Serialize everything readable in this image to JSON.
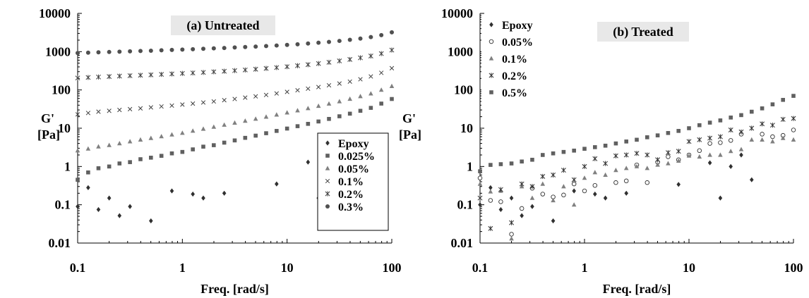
{
  "chart_data": [
    {
      "type": "scatter",
      "title": "(a) Untreated",
      "xlabel": "Freq. [rad/s]",
      "ylabel": "G' [Pa]",
      "xscale": "log",
      "yscale": "log",
      "xlim": [
        0.1,
        100
      ],
      "ylim": [
        0.01,
        10000
      ],
      "xticks": [
        "0.1",
        "1",
        "10",
        "100"
      ],
      "yticks": [
        "0.01",
        "0.1",
        "1",
        "10",
        "100",
        "1000",
        "10000"
      ],
      "grid": false,
      "legend_position": "bottom-right",
      "series": [
        {
          "name": "Epoxy",
          "marker": "diamond",
          "color": "#303030",
          "x": [
            0.1,
            0.126,
            0.158,
            0.2,
            0.251,
            0.316,
            0.501,
            0.794,
            1.259,
            1.585,
            2.512,
            7.943,
            15.85,
            19.95
          ],
          "y": [
            0.09,
            0.28,
            0.075,
            0.15,
            0.052,
            0.09,
            0.038,
            0.23,
            0.19,
            0.15,
            0.2,
            0.35,
            1.3,
            0.15
          ]
        },
        {
          "name": "0.025%",
          "marker": "square",
          "color": "#606060",
          "x": [
            0.1,
            0.126,
            0.158,
            0.2,
            0.251,
            0.316,
            0.398,
            0.501,
            0.631,
            0.794,
            1.0,
            1.259,
            1.585,
            1.995,
            2.512,
            3.162,
            3.981,
            5.012,
            6.31,
            7.943,
            10.0,
            12.59,
            15.85,
            19.95,
            25.12,
            31.62,
            39.81,
            50.12,
            63.1,
            79.43,
            100
          ],
          "y": [
            0.45,
            0.7,
            0.9,
            1.0,
            1.2,
            1.3,
            1.55,
            1.7,
            1.9,
            2.2,
            2.4,
            2.8,
            3.3,
            3.6,
            4.2,
            4.8,
            5.6,
            6.4,
            7.4,
            8.5,
            9.8,
            11.3,
            13.0,
            15.0,
            17.5,
            20.5,
            24.0,
            28.5,
            34.0,
            44.0,
            58.0
          ]
        },
        {
          "name": "0.05%",
          "marker": "triangle",
          "color": "#808080",
          "x": [
            0.1,
            0.126,
            0.158,
            0.2,
            0.251,
            0.316,
            0.398,
            0.501,
            0.631,
            0.794,
            1.0,
            1.259,
            1.585,
            1.995,
            2.512,
            3.162,
            3.981,
            5.012,
            6.31,
            7.943,
            10.0,
            12.59,
            15.85,
            19.95,
            25.12,
            31.62,
            39.81,
            50.12,
            63.1,
            79.43,
            100
          ],
          "y": [
            2.6,
            2.9,
            3.3,
            3.6,
            4.0,
            4.5,
            5.0,
            5.5,
            6.1,
            6.8,
            7.5,
            8.5,
            9.6,
            10.8,
            12.2,
            13.8,
            15.5,
            17.5,
            19.8,
            22.5,
            25.5,
            29.0,
            33.0,
            38.0,
            43.5,
            50.0,
            58.0,
            68.0,
            80.0,
            100.0,
            125.0
          ]
        },
        {
          "name": "0.1%",
          "marker": "x",
          "color": "#404040",
          "x": [
            0.1,
            0.126,
            0.158,
            0.2,
            0.251,
            0.316,
            0.398,
            0.501,
            0.631,
            0.794,
            1.0,
            1.259,
            1.585,
            1.995,
            2.512,
            3.162,
            3.981,
            5.012,
            6.31,
            7.943,
            10.0,
            12.59,
            15.85,
            19.95,
            25.12,
            31.62,
            39.81,
            50.12,
            63.1,
            79.43,
            100
          ],
          "y": [
            23.0,
            25.0,
            27.0,
            28.5,
            30.0,
            31.5,
            33.0,
            35.0,
            37.0,
            39.0,
            41.5,
            44.0,
            47.0,
            50.0,
            54.0,
            58.0,
            63.0,
            68.0,
            74.0,
            81.0,
            89.0,
            98.0,
            108.0,
            119.0,
            132.0,
            147.0,
            165.0,
            190.0,
            225.0,
            280.0,
            370.0
          ]
        },
        {
          "name": "0.2%",
          "marker": "star",
          "color": "#404040",
          "x": [
            0.1,
            0.126,
            0.158,
            0.2,
            0.251,
            0.316,
            0.398,
            0.501,
            0.631,
            0.794,
            1.0,
            1.259,
            1.585,
            1.995,
            2.512,
            3.162,
            3.981,
            5.012,
            6.31,
            7.943,
            10.0,
            12.59,
            15.85,
            19.95,
            25.12,
            31.62,
            39.81,
            50.12,
            63.1,
            79.43,
            100
          ],
          "y": [
            205.0,
            212.0,
            218.0,
            224.0,
            230.0,
            236.0,
            242.0,
            248.0,
            255.0,
            262.0,
            270.0,
            278.0,
            287.0,
            297.0,
            308.0,
            320.0,
            333.0,
            348.0,
            365.0,
            384.0,
            405.0,
            430.0,
            458.0,
            490.0,
            528.0,
            573.0,
            626.0,
            690.0,
            770.0,
            890.0,
            1100.0
          ]
        },
        {
          "name": "0.3%",
          "marker": "circle",
          "color": "#505050",
          "x": [
            0.1,
            0.126,
            0.158,
            0.2,
            0.251,
            0.316,
            0.398,
            0.501,
            0.631,
            0.794,
            1.0,
            1.259,
            1.585,
            1.995,
            2.512,
            3.162,
            3.981,
            5.012,
            6.31,
            7.943,
            10.0,
            12.59,
            15.85,
            19.95,
            25.12,
            31.62,
            39.81,
            50.12,
            63.1,
            79.43,
            100
          ],
          "y": [
            920.0,
            940.0,
            960.0,
            980.0,
            1000.0,
            1020.0,
            1040.0,
            1060.0,
            1085.0,
            1110.0,
            1135.0,
            1160.0,
            1190.0,
            1220.0,
            1250.0,
            1285.0,
            1320.0,
            1360.0,
            1400.0,
            1450.0,
            1500.0,
            1560.0,
            1630.0,
            1710.0,
            1800.0,
            1910.0,
            2040.0,
            2200.0,
            2400.0,
            2700.0,
            3200.0
          ]
        }
      ]
    },
    {
      "type": "scatter",
      "title": "(b) Treated",
      "xlabel": "Freq. [rad/s]",
      "ylabel": "G' [Pa]",
      "xscale": "log",
      "yscale": "log",
      "xlim": [
        0.1,
        100
      ],
      "ylim": [
        0.01,
        10000
      ],
      "xticks": [
        "0.1",
        "1",
        "10",
        "100"
      ],
      "yticks": [
        "0.01",
        "0.1",
        "1",
        "10",
        "100",
        "1000",
        "10000"
      ],
      "grid": false,
      "legend_position": "top-left",
      "series": [
        {
          "name": "Epoxy",
          "marker": "diamond",
          "color": "#303030",
          "x": [
            0.1,
            0.126,
            0.158,
            0.2,
            0.251,
            0.316,
            0.501,
            0.794,
            1.259,
            1.585,
            2.512,
            7.943,
            15.85,
            19.95,
            25.12,
            31.62,
            39.81
          ],
          "y": [
            0.1,
            0.28,
            0.075,
            0.15,
            0.052,
            0.09,
            0.038,
            0.23,
            0.19,
            0.15,
            0.2,
            0.34,
            1.25,
            0.15,
            1.0,
            2.0,
            0.45
          ]
        },
        {
          "name": "0.05%",
          "marker": "open-circle",
          "color": "#303030",
          "x": [
            0.1,
            0.126,
            0.158,
            0.2,
            0.251,
            0.316,
            0.398,
            0.501,
            0.631,
            0.794,
            1.0,
            1.259,
            1.995,
            2.512,
            3.162,
            3.981,
            5.012,
            6.31,
            7.943,
            10.0,
            12.59,
            15.85,
            19.95,
            25.12,
            31.62,
            50.12,
            63.1,
            79.43,
            100
          ],
          "y": [
            0.5,
            0.13,
            0.12,
            0.017,
            0.08,
            0.27,
            0.19,
            0.16,
            0.18,
            0.35,
            0.23,
            0.32,
            0.38,
            0.42,
            1.1,
            0.38,
            1.3,
            1.8,
            1.5,
            2.0,
            2.6,
            4.0,
            4.2,
            4.8,
            7.0,
            7.0,
            6.0,
            6.5,
            9.0
          ]
        },
        {
          "name": "0.1%",
          "marker": "triangle",
          "color": "#808080",
          "x": [
            0.1,
            0.126,
            0.158,
            0.2,
            0.251,
            0.316,
            0.398,
            0.501,
            0.631,
            0.794,
            1.0,
            1.259,
            1.585,
            1.995,
            2.512,
            3.162,
            3.981,
            5.012,
            6.31,
            7.943,
            10.0,
            12.59,
            15.85,
            19.95,
            25.12,
            31.62,
            39.81,
            50.12,
            63.1,
            79.43,
            100
          ],
          "y": [
            0.35,
            0.22,
            0.23,
            0.013,
            0.3,
            0.15,
            0.35,
            0.13,
            0.3,
            0.1,
            0.5,
            0.7,
            0.6,
            0.8,
            0.9,
            1.0,
            0.9,
            1.1,
            1.2,
            1.4,
            1.9,
            1.8,
            2.0,
            2.0,
            2.5,
            2.8,
            5.0,
            5.0,
            4.5,
            5.5,
            5.0
          ]
        },
        {
          "name": "0.2%",
          "marker": "star",
          "color": "#303030",
          "x": [
            0.1,
            0.126,
            0.158,
            0.2,
            0.251,
            0.316,
            0.398,
            0.501,
            0.631,
            0.794,
            1.0,
            1.259,
            1.585,
            1.995,
            2.512,
            3.162,
            3.981,
            5.012,
            6.31,
            7.943,
            10.0,
            12.59,
            15.85,
            19.95,
            25.12,
            31.62,
            39.81,
            50.12,
            63.1,
            79.43,
            100
          ],
          "y": [
            0.15,
            0.024,
            0.25,
            0.034,
            0.35,
            0.3,
            0.55,
            0.6,
            0.8,
            0.45,
            1.0,
            1.6,
            1.2,
            1.9,
            2.0,
            2.2,
            2.0,
            1.5,
            2.3,
            2.5,
            4.5,
            5.0,
            5.5,
            6.0,
            9.0,
            8.0,
            10.0,
            13.0,
            12.0,
            17.0,
            18.0
          ]
        },
        {
          "name": "0.5%",
          "marker": "square",
          "color": "#606060",
          "x": [
            0.1,
            0.126,
            0.158,
            0.2,
            0.251,
            0.316,
            0.398,
            0.501,
            0.631,
            0.794,
            1.0,
            1.259,
            1.585,
            1.995,
            2.512,
            3.162,
            3.981,
            5.012,
            6.31,
            7.943,
            10.0,
            12.59,
            15.85,
            19.95,
            25.12,
            31.62,
            39.81,
            50.12,
            63.1,
            79.43,
            100
          ],
          "y": [
            0.75,
            1.1,
            1.15,
            1.2,
            1.35,
            1.5,
            2.0,
            2.2,
            2.4,
            2.6,
            2.9,
            3.2,
            3.5,
            4.0,
            4.5,
            5.0,
            5.8,
            6.5,
            7.5,
            8.5,
            10.0,
            12.0,
            14.0,
            16.0,
            19.0,
            22.0,
            27.0,
            33.0,
            42.0,
            55.0,
            70.0
          ]
        }
      ]
    }
  ]
}
